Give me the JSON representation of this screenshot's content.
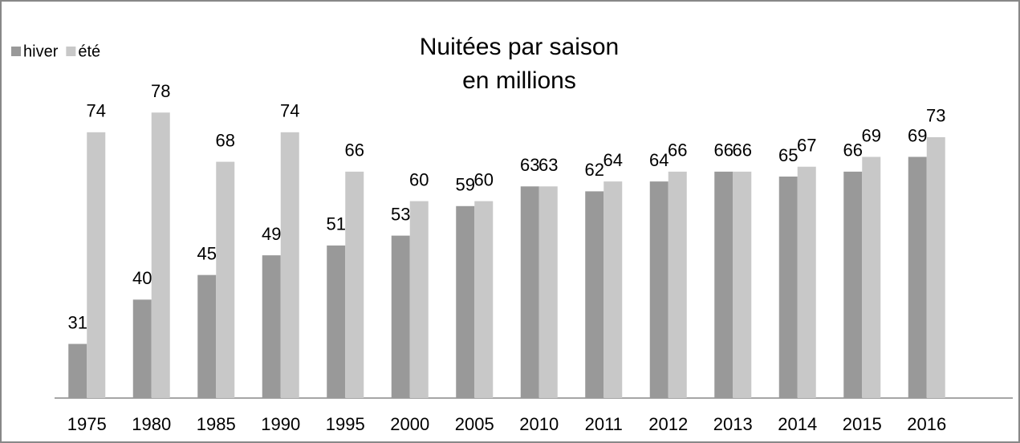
{
  "chart_data": {
    "type": "bar",
    "title": "Nuitées par saison",
    "subtitle": "en millions",
    "categories": [
      "1975",
      "1980",
      "1985",
      "1990",
      "1995",
      "2000",
      "2005",
      "2010",
      "2011",
      "2012",
      "2013",
      "2014",
      "2015",
      "2016"
    ],
    "series": [
      {
        "name": "hiver",
        "color": "#999999",
        "values": [
          31,
          40,
          45,
          49,
          51,
          53,
          59,
          63,
          62,
          64,
          66,
          65,
          66,
          69
        ]
      },
      {
        "name": "été",
        "color": "#c8c8c8",
        "values": [
          74,
          78,
          68,
          74,
          66,
          60,
          60,
          63,
          64,
          66,
          66,
          67,
          69,
          73
        ]
      }
    ],
    "ylim": [
      20,
      80
    ],
    "legend": "top-left"
  }
}
